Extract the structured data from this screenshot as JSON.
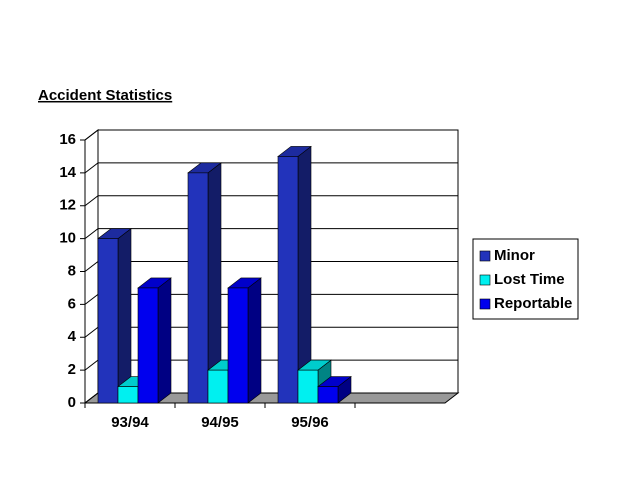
{
  "chart_data": {
    "type": "bar3d",
    "title": "Accident Statistics",
    "categories": [
      "93/94",
      "94/95",
      "95/96",
      null
    ],
    "series": [
      {
        "name": "Minor",
        "color": "#2233bb",
        "values": [
          10,
          14,
          15,
          null
        ]
      },
      {
        "name": "Lost Time",
        "color": "#00f0f0",
        "values": [
          1,
          2,
          2,
          null
        ]
      },
      {
        "name": "Reportable",
        "color": "#0000ee",
        "values": [
          7,
          7,
          1,
          null
        ]
      }
    ],
    "ylim": [
      0,
      16
    ],
    "yticks": [
      0,
      2,
      4,
      6,
      8,
      10,
      12,
      14,
      16
    ],
    "grid": true,
    "legend": "right"
  }
}
